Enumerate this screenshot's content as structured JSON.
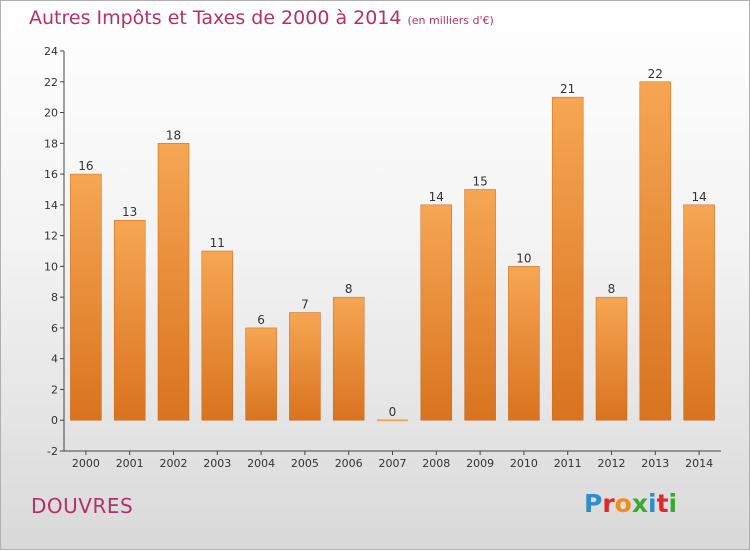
{
  "title": "Autres Impôts et Taxes de 2000 à 2014",
  "unit": "(en milliers d'€)",
  "place": "DOUVRES",
  "logo": {
    "letters": [
      "P",
      "r",
      "o",
      "x",
      "i",
      "t",
      "i"
    ],
    "colors": [
      "#2d8fc9",
      "#e1262c",
      "#f28d1c",
      "#3aaa35",
      "#2d8fc9",
      "#e1262c",
      "#3aaa35"
    ]
  },
  "colors": {
    "title": "#b5306a",
    "bar_top": "#f6a653",
    "bar_bottom": "#d9731f"
  },
  "chart_data": {
    "type": "bar",
    "categories": [
      "2000",
      "2001",
      "2002",
      "2003",
      "2004",
      "2005",
      "2006",
      "2007",
      "2008",
      "2009",
      "2010",
      "2011",
      "2012",
      "2013",
      "2014"
    ],
    "values": [
      16,
      13,
      18,
      11,
      6,
      7,
      8,
      0,
      14,
      15,
      10,
      21,
      8,
      22,
      14
    ],
    "ylim": [
      -2,
      24
    ],
    "yticks": [
      -2,
      0,
      2,
      4,
      6,
      8,
      10,
      12,
      14,
      16,
      18,
      20,
      22,
      24
    ],
    "grid": false,
    "xlabel": "",
    "ylabel": ""
  }
}
